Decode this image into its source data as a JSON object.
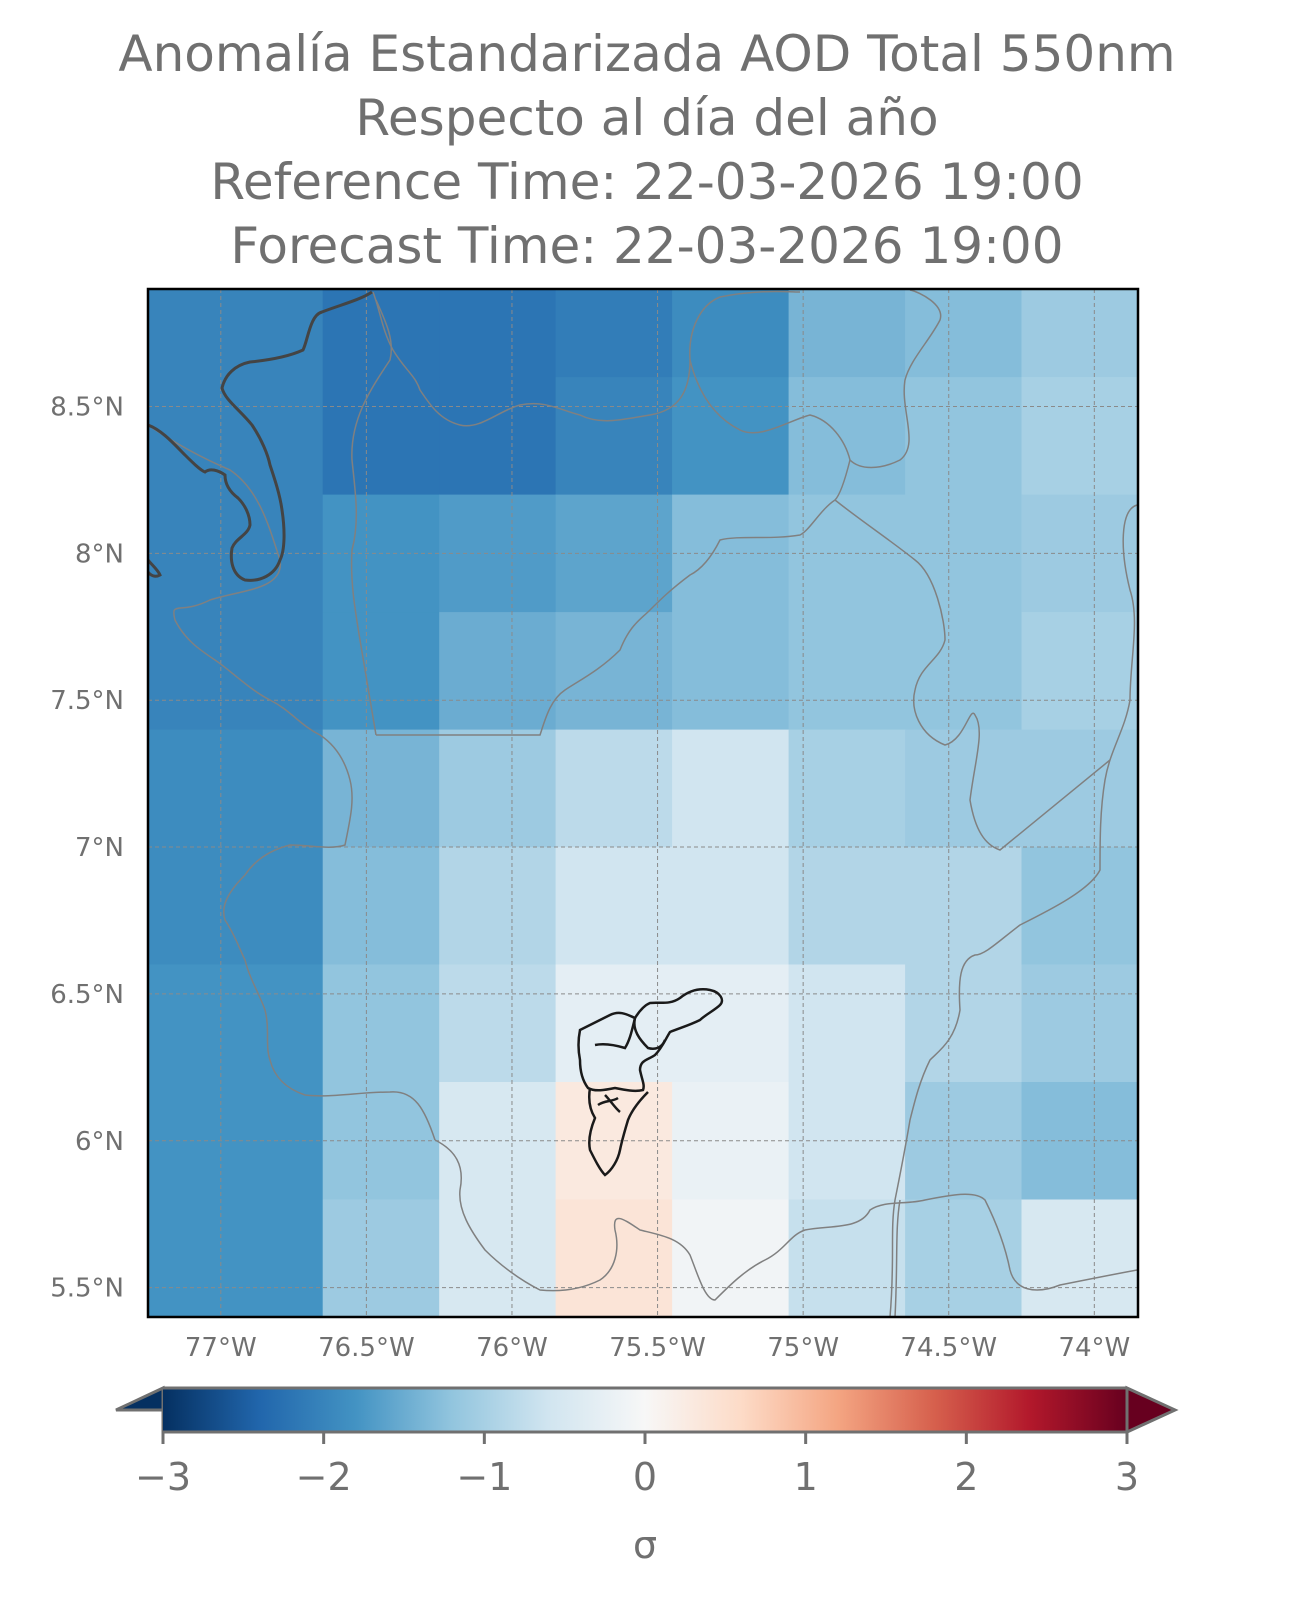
{
  "title": {
    "line1": "Anomalía Estandarizada AOD Total 550nm",
    "line2": "Respecto al día del año",
    "line3": "Reference Time: 22-03-2026 19:00",
    "line4": "Forecast Time: 22-03-2026 19:00"
  },
  "map": {
    "lon_range": [
      -77.25,
      -73.85
    ],
    "lat_range": [
      5.4,
      8.9
    ],
    "lon_ticks": [
      {
        "value": -77.0,
        "label": "77°W"
      },
      {
        "value": -76.5,
        "label": "76.5°W"
      },
      {
        "value": -76.0,
        "label": "76°W"
      },
      {
        "value": -75.5,
        "label": "75.5°W"
      },
      {
        "value": -75.0,
        "label": "75°W"
      },
      {
        "value": -74.5,
        "label": "74.5°W"
      },
      {
        "value": -74.0,
        "label": "74°W"
      }
    ],
    "lat_ticks": [
      {
        "value": 8.5,
        "label": "8.5°N"
      },
      {
        "value": 8.0,
        "label": "8°N"
      },
      {
        "value": 7.5,
        "label": "7.5°N"
      },
      {
        "value": 7.0,
        "label": "7°N"
      },
      {
        "value": 6.5,
        "label": "6.5°N"
      },
      {
        "value": 6.0,
        "label": "6°N"
      },
      {
        "value": 5.5,
        "label": "5.5°N"
      }
    ],
    "grid_cell_lon_edges": [
      -77.25,
      -76.65,
      -76.25,
      -75.85,
      -75.45,
      -75.05,
      -74.65,
      -74.25,
      -73.85
    ],
    "grid_cell_lat_edges": [
      8.9,
      8.6,
      8.2,
      7.8,
      7.4,
      7.0,
      6.6,
      6.2,
      5.8,
      5.4
    ],
    "anomaly_grid_sigma": [
      [
        -2.0,
        -2.2,
        -2.2,
        -2.1,
        -1.9,
        -1.4,
        -1.3,
        -1.1
      ],
      [
        -2.0,
        -2.2,
        -2.2,
        -2.0,
        -1.8,
        -1.3,
        -1.2,
        -1.0
      ],
      [
        -2.0,
        -1.8,
        -1.7,
        -1.6,
        -1.3,
        -1.2,
        -1.2,
        -1.1
      ],
      [
        -2.0,
        -1.8,
        -1.5,
        -1.4,
        -1.3,
        -1.2,
        -1.2,
        -1.0
      ],
      [
        -1.9,
        -1.4,
        -1.1,
        -0.8,
        -0.6,
        -1.0,
        -1.1,
        -1.1
      ],
      [
        -1.9,
        -1.3,
        -0.9,
        -0.6,
        -0.6,
        -0.9,
        -0.9,
        -1.2
      ],
      [
        -1.8,
        -1.2,
        -0.8,
        -0.3,
        -0.3,
        -0.6,
        -0.9,
        -1.1
      ],
      [
        -1.8,
        -1.2,
        -0.5,
        0.3,
        -0.2,
        -0.6,
        -1.1,
        -1.3
      ],
      [
        -1.8,
        -1.1,
        -0.5,
        0.4,
        -0.1,
        -0.7,
        -1.0,
        -0.5
      ]
    ],
    "gridlines": true
  },
  "colorbar": {
    "colormap": "RdBu_r",
    "range": [
      -3,
      3
    ],
    "extend": "both",
    "ticks": [
      {
        "value": -3,
        "label": "−3"
      },
      {
        "value": -2,
        "label": "−2"
      },
      {
        "value": -1,
        "label": "−1"
      },
      {
        "value": 0,
        "label": "0"
      },
      {
        "value": 1,
        "label": "1"
      },
      {
        "value": 2,
        "label": "2"
      },
      {
        "value": 3,
        "label": "3"
      }
    ],
    "label": "σ"
  },
  "colors": {
    "text": "#707070",
    "border_lines": "#808080",
    "coastline": "#444444",
    "district_outline": "#1a1a1a"
  }
}
